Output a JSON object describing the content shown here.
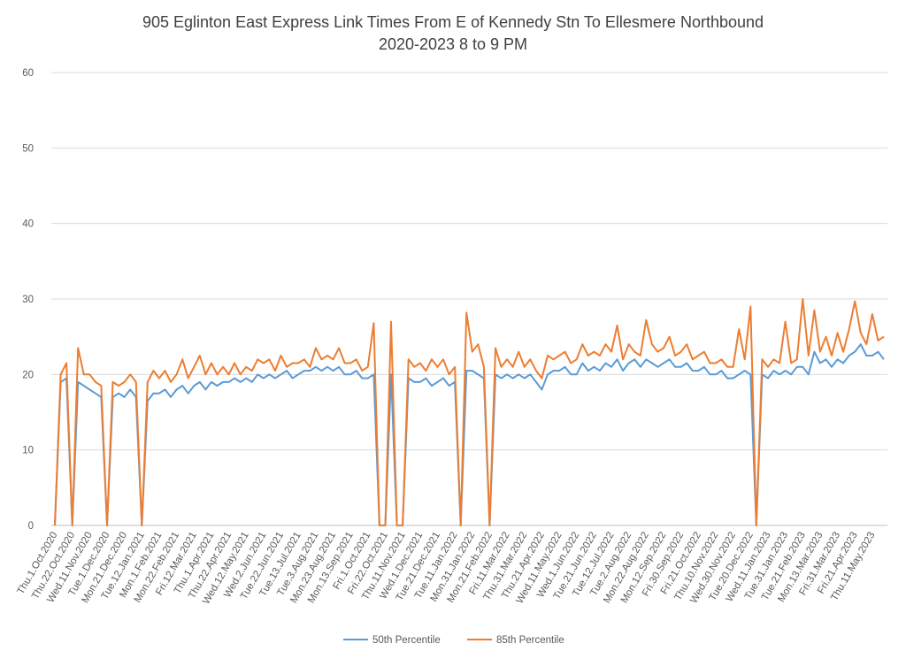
{
  "chart_data": {
    "type": "line",
    "title": "905 Eglinton East Express Link Times From E of Kennedy Stn To Ellesmere Northbound",
    "subtitle": "2020-2023 8 to 9 PM",
    "categories": [
      "Thu.1.Oct.2020",
      null,
      null,
      "Thu.22.Oct.2020",
      null,
      null,
      "Wed.11.Nov.2020",
      null,
      null,
      "Tue.1.Dec.2020",
      null,
      null,
      "Mon.21.Dec.2020",
      null,
      null,
      "Tue.12.Jan.2021",
      null,
      null,
      "Mon.1.Feb.2021",
      null,
      null,
      "Mon.22.Feb.2021",
      null,
      null,
      "Fri.12.Mar.2021",
      null,
      null,
      "Thu.1.Apr.2021",
      null,
      null,
      "Thu.22.Apr.2021",
      null,
      null,
      "Wed.12.May.2021",
      null,
      null,
      "Wed.2.Jun.2021",
      null,
      null,
      "Tue.22.Jun.2021",
      null,
      null,
      "Tue.13.Jul.2021",
      null,
      null,
      "Tue.3.Aug.2021",
      null,
      null,
      "Mon.23.Aug.2021",
      null,
      null,
      "Mon.13.Sep.2021",
      null,
      null,
      "Fri.1.Oct.2021",
      null,
      null,
      "Fri.22.Oct.2021",
      null,
      null,
      "Thu.11.Nov.2021",
      null,
      null,
      "Wed.1.Dec.2021",
      null,
      null,
      "Tue.21.Dec.2021",
      null,
      null,
      "Tue.11.Jan.2022",
      null,
      null,
      "Mon.31.Jan.2022",
      null,
      null,
      "Mon.21.Feb.2022",
      null,
      null,
      "Fri.11.Mar.2022",
      null,
      null,
      "Thu.31.Mar.2022",
      null,
      null,
      "Thu.21.Apr.2022",
      null,
      null,
      "Wed.11.May.2022",
      null,
      null,
      "Wed.1.Jun.2022",
      null,
      null,
      "Tue.21.Jun.2022",
      null,
      null,
      "Tue.12.Jul.2022",
      null,
      null,
      "Tue.2.Aug.2022",
      null,
      null,
      "Mon.22.Aug.2022",
      null,
      null,
      "Mon.12.Sep.2022",
      null,
      null,
      "Fri.30.Sep.2022",
      null,
      null,
      "Fri.21.Oct.2022",
      null,
      null,
      "Thu.10.Nov.2022",
      null,
      null,
      "Wed.30.Nov.2022",
      null,
      null,
      "Tue.20.Dec.2022",
      null,
      null,
      "Wed.11.Jan.2023",
      null,
      null,
      "Tue.31.Jan.2023",
      null,
      null,
      "Tue.21.Feb.2023",
      null,
      null,
      "Mon.13.Mar.2023",
      null,
      null,
      "Fri.31.Mar.2023",
      null,
      null,
      "Fri.21.Apr.2023",
      null,
      null,
      "Thu.11.May.2023",
      null,
      null
    ],
    "series": [
      {
        "name": "50th Percentile",
        "color": "#5b9bd5",
        "values": [
          0,
          19,
          19.5,
          0,
          19,
          18.5,
          18,
          17.5,
          17,
          0,
          17,
          17.5,
          17,
          18,
          17,
          0,
          16.5,
          17.5,
          17.5,
          18,
          17,
          18,
          18.5,
          17.5,
          18.5,
          19,
          18,
          19,
          18.5,
          19,
          19,
          19.5,
          19,
          19.5,
          19,
          20,
          19.5,
          20,
          19.5,
          20,
          20.5,
          19.5,
          20,
          20.5,
          20.5,
          21,
          20.5,
          21,
          20.5,
          21,
          20,
          20,
          20.5,
          19.5,
          19.5,
          20,
          0,
          0,
          20,
          0,
          0,
          19.5,
          19,
          19,
          19.5,
          18.5,
          19,
          19.5,
          18.5,
          19,
          0,
          20.5,
          20.5,
          20,
          19.5,
          0,
          20,
          19.5,
          20,
          19.5,
          20,
          19.5,
          20,
          19,
          18,
          20,
          20.5,
          20.5,
          21,
          20,
          20,
          21.5,
          20.5,
          21,
          20.5,
          21.5,
          21,
          22,
          20.5,
          21.5,
          22,
          21,
          22,
          21.5,
          21,
          21.5,
          22,
          21,
          21,
          21.5,
          20.5,
          20.5,
          21,
          20,
          20,
          20.5,
          19.5,
          19.5,
          20,
          20.5,
          20,
          0,
          20,
          19.5,
          20.5,
          20,
          20.5,
          20,
          21,
          21,
          20,
          23,
          21.5,
          22,
          21,
          22,
          21.5,
          22.5,
          23,
          24,
          22.5,
          22.5,
          23,
          22
        ]
      },
      {
        "name": "85th Percentile",
        "color": "#ed7d31",
        "values": [
          0,
          20,
          21.5,
          0,
          23.5,
          20,
          20,
          19,
          18.5,
          0,
          19,
          18.5,
          19,
          20,
          19,
          0,
          19,
          20.5,
          19.5,
          20.5,
          19,
          20,
          22,
          19.5,
          21,
          22.5,
          20,
          21.5,
          20,
          21,
          20,
          21.5,
          20,
          21,
          20.5,
          22,
          21.5,
          22,
          20.5,
          22.5,
          21,
          21.5,
          21.5,
          22,
          21,
          23.5,
          22,
          22.5,
          22,
          23.5,
          21.5,
          21.5,
          22,
          20.5,
          21,
          26.8,
          0,
          0,
          27,
          0,
          0,
          22,
          21,
          21.5,
          20.5,
          22,
          21,
          22,
          20,
          21,
          0,
          28.2,
          23,
          24,
          21,
          0,
          23.5,
          21,
          22,
          21,
          23,
          21,
          22,
          20.5,
          19.5,
          22.5,
          22,
          22.5,
          23,
          21.5,
          22,
          24,
          22.5,
          23,
          22.5,
          24,
          23,
          26.5,
          22,
          24,
          23,
          22.5,
          27.2,
          24,
          23,
          23.5,
          25,
          22.5,
          23,
          24,
          22,
          22.5,
          23,
          21.5,
          21.5,
          22,
          21,
          21,
          26,
          22,
          29,
          0,
          22,
          21,
          22,
          21.5,
          27,
          21.5,
          22,
          30,
          22.5,
          28.5,
          23,
          25,
          22.5,
          25.5,
          23,
          26,
          29.7,
          25.5,
          24,
          28,
          24.5,
          25
        ]
      }
    ],
    "ylim": [
      0,
      60
    ],
    "yticks": [
      0,
      10,
      20,
      30,
      40,
      50,
      60
    ],
    "grid": true,
    "legend": "bottom"
  }
}
